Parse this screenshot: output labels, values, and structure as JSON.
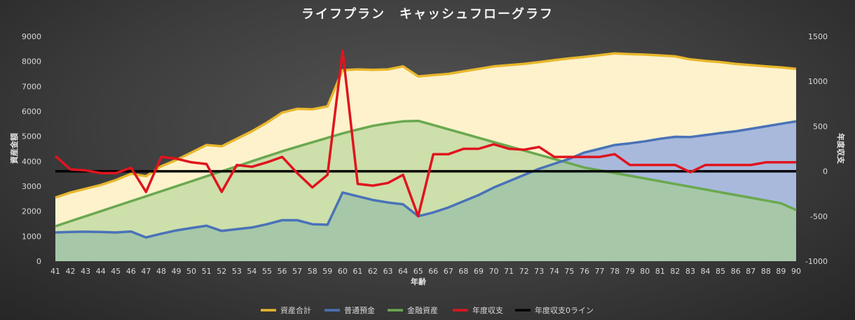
{
  "colors": {
    "total": "#e8b72b",
    "savings": "#4a72b8",
    "financial": "#6aa84f",
    "annual": "#e0141e",
    "zero": "#000000",
    "total_fill": "#fdf2cc",
    "financial_fill": "#cddfaa",
    "savings_fill": "#a8b9dc",
    "overlap_fill": "#a6c8a8"
  },
  "chart_data": {
    "type": "area",
    "title": "ライフプラン　キャッシュフローグラフ",
    "xlabel": "年齢",
    "ylabel_left": "資産金額",
    "ylabel_right": "年度収支",
    "x": [
      41,
      42,
      43,
      44,
      45,
      46,
      47,
      48,
      49,
      50,
      51,
      52,
      53,
      54,
      55,
      56,
      57,
      58,
      59,
      60,
      61,
      62,
      63,
      64,
      65,
      66,
      67,
      68,
      69,
      70,
      71,
      72,
      73,
      74,
      75,
      76,
      77,
      78,
      79,
      80,
      81,
      82,
      83,
      84,
      85,
      86,
      87,
      88,
      89,
      90
    ],
    "ylim_left": [
      0,
      9000
    ],
    "yticks_left": [
      0,
      1000,
      2000,
      3000,
      4000,
      5000,
      6000,
      7000,
      8000,
      9000
    ],
    "ylim_right": [
      -1000,
      1500
    ],
    "yticks_right": [
      -1000,
      -500,
      0,
      500,
      1000,
      1500
    ],
    "series": [
      {
        "name": "資産合計",
        "axis": "left",
        "kind": "area-line",
        "color_key": "total",
        "values": [
          2550,
          2750,
          2900,
          3050,
          3250,
          3500,
          3400,
          3800,
          4050,
          4350,
          4650,
          4600,
          4900,
          5200,
          5550,
          5950,
          6100,
          6080,
          6200,
          7650,
          7680,
          7660,
          7680,
          7800,
          7400,
          7450,
          7500,
          7600,
          7700,
          7800,
          7850,
          7900,
          7970,
          8050,
          8120,
          8180,
          8250,
          8320,
          8290,
          8270,
          8240,
          8200,
          8080,
          8020,
          7970,
          7900,
          7850,
          7800,
          7760,
          7700
        ]
      },
      {
        "name": "普通預金",
        "axis": "left",
        "kind": "area-line",
        "color_key": "savings",
        "values": [
          1150,
          1170,
          1180,
          1170,
          1150,
          1190,
          950,
          1100,
          1230,
          1330,
          1420,
          1210,
          1280,
          1350,
          1480,
          1640,
          1640,
          1480,
          1460,
          2750,
          2600,
          2450,
          2350,
          2280,
          1800,
          1950,
          2150,
          2400,
          2650,
          2950,
          3200,
          3450,
          3700,
          3900,
          4100,
          4350,
          4500,
          4650,
          4720,
          4800,
          4900,
          4980,
          4970,
          5050,
          5130,
          5200,
          5300,
          5400,
          5500,
          5600
        ]
      },
      {
        "name": "金融資産",
        "axis": "left",
        "kind": "area-line",
        "color_key": "financial",
        "values": [
          1400,
          1600,
          1800,
          2000,
          2200,
          2400,
          2600,
          2800,
          3000,
          3200,
          3400,
          3600,
          3800,
          4000,
          4200,
          4400,
          4580,
          4760,
          4940,
          5120,
          5270,
          5420,
          5520,
          5600,
          5620,
          5450,
          5280,
          5110,
          4940,
          4770,
          4600,
          4430,
          4260,
          4090,
          3920,
          3750,
          3640,
          3530,
          3420,
          3310,
          3200,
          3090,
          2980,
          2870,
          2760,
          2650,
          2540,
          2430,
          2320,
          2050
        ]
      },
      {
        "name": "年度収支",
        "axis": "right",
        "kind": "line",
        "color_key": "annual",
        "values": [
          170,
          20,
          10,
          -20,
          -20,
          40,
          -230,
          160,
          140,
          100,
          80,
          -230,
          70,
          50,
          100,
          160,
          -20,
          -180,
          -40,
          1340,
          -140,
          -160,
          -130,
          -40,
          -500,
          190,
          190,
          250,
          250,
          300,
          250,
          240,
          270,
          160,
          160,
          160,
          160,
          190,
          70,
          70,
          70,
          70,
          -10,
          70,
          70,
          70,
          70,
          100,
          100,
          100
        ]
      },
      {
        "name": "年度収支0ライン",
        "axis": "right",
        "kind": "line",
        "color_key": "zero",
        "values": [
          0,
          0,
          0,
          0,
          0,
          0,
          0,
          0,
          0,
          0,
          0,
          0,
          0,
          0,
          0,
          0,
          0,
          0,
          0,
          0,
          0,
          0,
          0,
          0,
          0,
          0,
          0,
          0,
          0,
          0,
          0,
          0,
          0,
          0,
          0,
          0,
          0,
          0,
          0,
          0,
          0,
          0,
          0,
          0,
          0,
          0,
          0,
          0,
          0,
          0
        ]
      }
    ],
    "legend_position": "bottom",
    "grid": false
  }
}
